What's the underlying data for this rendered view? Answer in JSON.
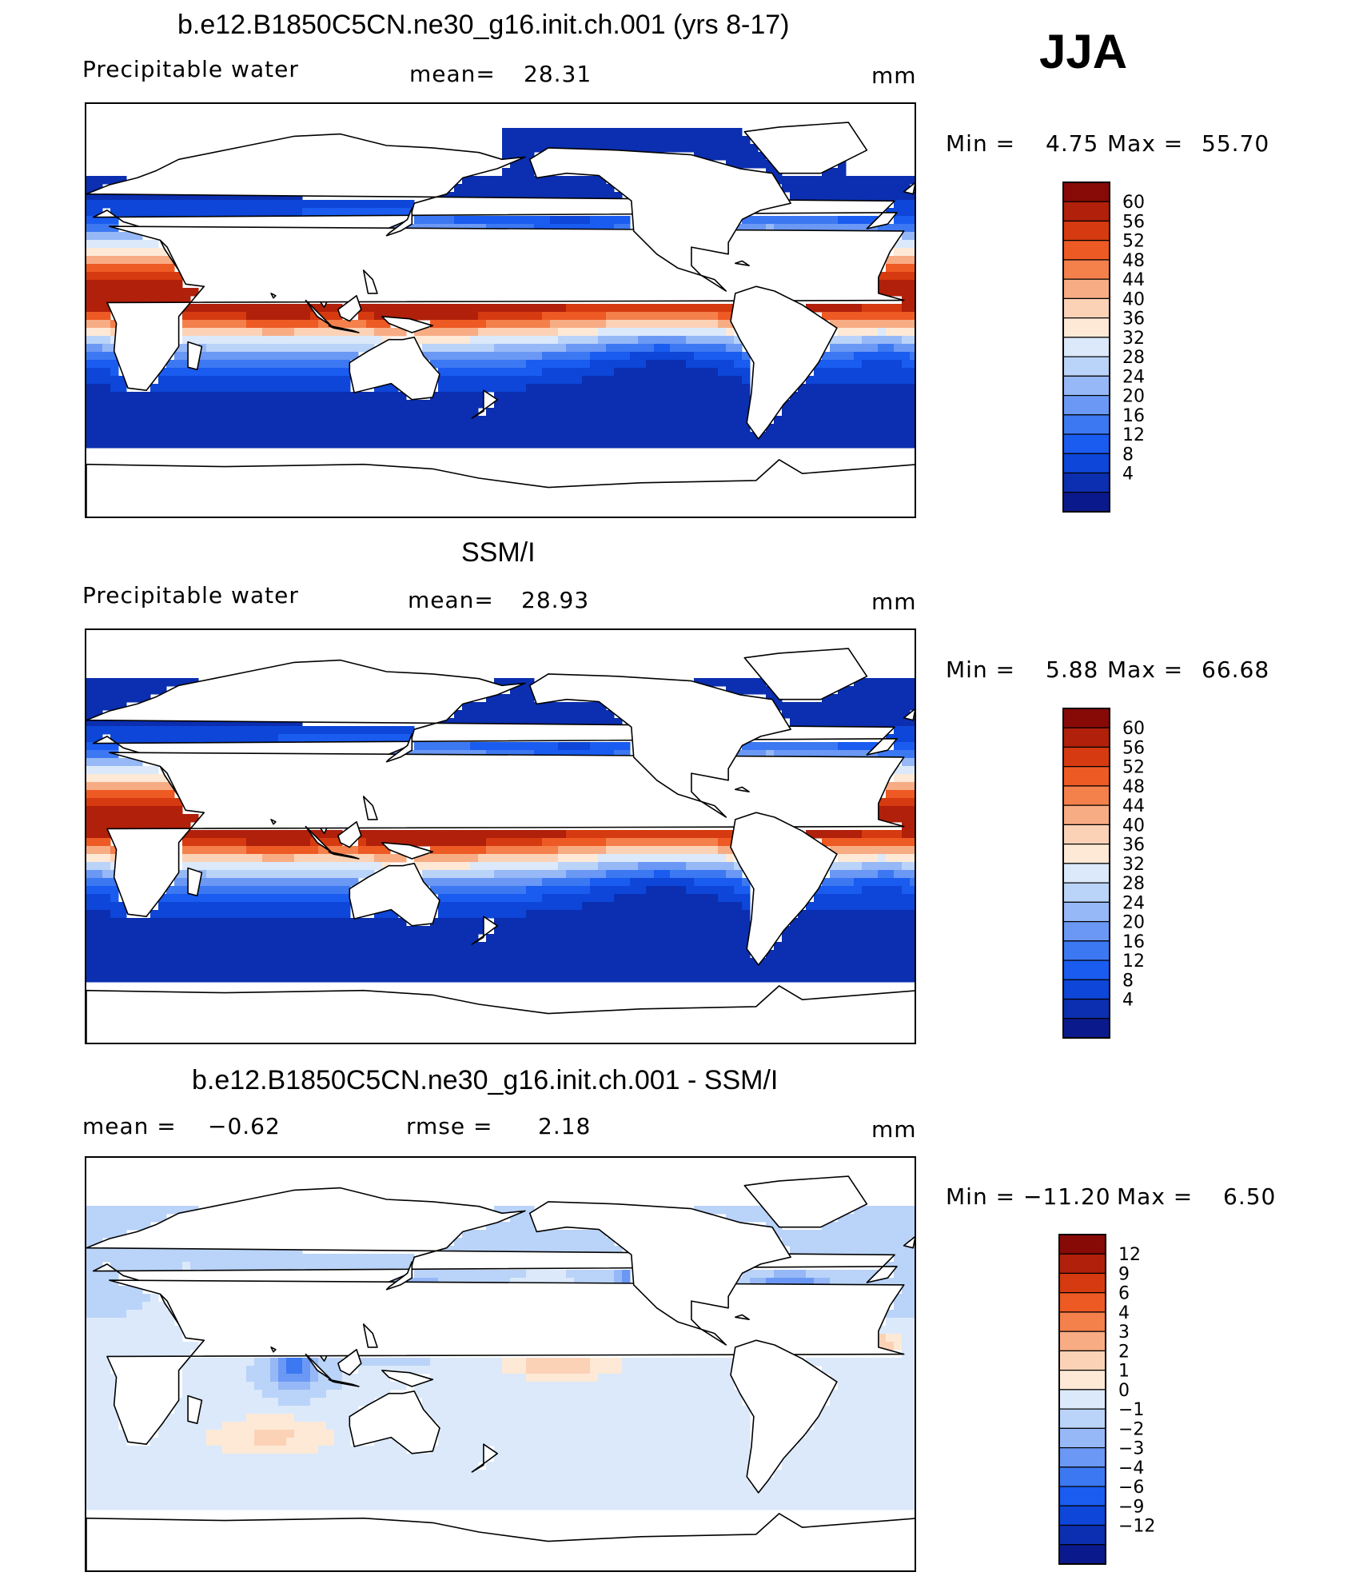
{
  "header": {
    "season": "JJA"
  },
  "colors": {
    "pos_scale": [
      "#0a1a8c",
      "#0b2fb0",
      "#0d46d8",
      "#1a5cf0",
      "#3c78f2",
      "#6a98f4",
      "#96b8f6",
      "#bad3f8",
      "#dbe9fb",
      "#fde9d6",
      "#fcd2b6",
      "#f8ac84",
      "#f4804c",
      "#ee5a24",
      "#d63a10",
      "#b0200a",
      "#880a06"
    ],
    "diff_scale": [
      "#0a1a8c",
      "#0b2fb0",
      "#0d46d8",
      "#1a5cf0",
      "#3c78f2",
      "#6a98f4",
      "#96b8f6",
      "#bad3f8",
      "#dbe9fb",
      "#fde9d6",
      "#fcd2b6",
      "#f8ac84",
      "#f4804c",
      "#ee5a24",
      "#d63a10",
      "#b0200a",
      "#880a06"
    ],
    "coast": "#000000"
  },
  "panels": [
    {
      "title": "b.e12.B1850C5CN.ne30_g16.init.ch.001 (yrs 8-17)",
      "variable": "Precipitable water",
      "stat1_label": "mean=",
      "stat1_value": "28.31",
      "stat2_label": "",
      "stat2_value": "",
      "units": "mm",
      "min_label": "Min  =",
      "min_value": "4.75",
      "max_label": "Max  =",
      "max_value": "55.70",
      "colorbar_ticks": [
        "60",
        "56",
        "52",
        "48",
        "44",
        "40",
        "36",
        "32",
        "28",
        "24",
        "20",
        "16",
        "12",
        "8",
        "4"
      ]
    },
    {
      "title": "SSM/I",
      "variable": "Precipitable water",
      "stat1_label": "mean=",
      "stat1_value": "28.93",
      "stat2_label": "",
      "stat2_value": "",
      "units": "mm",
      "min_label": "Min  =",
      "min_value": "5.88",
      "max_label": "Max  =",
      "max_value": "66.68",
      "colorbar_ticks": [
        "60",
        "56",
        "52",
        "48",
        "44",
        "40",
        "36",
        "32",
        "28",
        "24",
        "20",
        "16",
        "12",
        "8",
        "4"
      ]
    },
    {
      "title": "b.e12.B1850C5CN.ne30_g16.init.ch.001 - SSM/I",
      "variable": "",
      "stat1_label": "mean =",
      "stat1_value": "−0.62",
      "stat2_label": "rmse =",
      "stat2_value": "2.18",
      "units": "mm",
      "min_label": "Min  =",
      "min_value": "−11.20",
      "max_label": "Max  =",
      "max_value": "6.50",
      "colorbar_ticks": [
        "12",
        "9",
        "6",
        "4",
        "3",
        "2",
        "1",
        "0",
        "−1",
        "−2",
        "−3",
        "−4",
        "−6",
        "−9",
        "−12"
      ]
    }
  ],
  "chart_data": [
    {
      "type": "heatmap",
      "title": "b.e12.B1850C5CN.ne30_g16.init.ch.001 (yrs 8-17)",
      "subtitle": "Precipitable water",
      "season": "JJA",
      "mean": 28.31,
      "min": 4.75,
      "max": 55.7,
      "units": "mm",
      "colorbar_levels": [
        4,
        8,
        12,
        16,
        20,
        24,
        28,
        32,
        36,
        40,
        44,
        48,
        52,
        56,
        60
      ],
      "xlim": [
        0,
        360
      ],
      "ylim": [
        -90,
        90
      ],
      "legend_position": "right"
    },
    {
      "type": "heatmap",
      "title": "SSM/I",
      "subtitle": "Precipitable water",
      "season": "JJA",
      "mean": 28.93,
      "min": 5.88,
      "max": 66.68,
      "units": "mm",
      "colorbar_levels": [
        4,
        8,
        12,
        16,
        20,
        24,
        28,
        32,
        36,
        40,
        44,
        48,
        52,
        56,
        60
      ],
      "xlim": [
        0,
        360
      ],
      "ylim": [
        -90,
        90
      ],
      "legend_position": "right"
    },
    {
      "type": "heatmap",
      "title": "b.e12.B1850C5CN.ne30_g16.init.ch.001 - SSM/I",
      "season": "JJA",
      "mean": -0.62,
      "rmse": 2.18,
      "min": -11.2,
      "max": 6.5,
      "units": "mm",
      "colorbar_levels": [
        -12,
        -9,
        -6,
        -4,
        -3,
        -2,
        -1,
        0,
        1,
        2,
        3,
        4,
        6,
        9,
        12
      ],
      "xlim": [
        0,
        360
      ],
      "ylim": [
        -90,
        90
      ],
      "legend_position": "right"
    }
  ]
}
